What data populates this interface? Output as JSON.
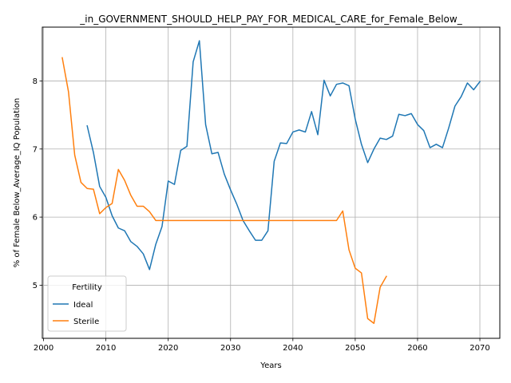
{
  "chart_data": {
    "type": "line",
    "title": "_in_GOVERNMENT_SHOULD_HELP_PAY_FOR_MEDICAL_CARE_for_Female_Below_",
    "xlabel": "Years",
    "ylabel": "% of Female Below_Average_IQ Population",
    "xlim": [
      1999.8,
      2073.2
    ],
    "ylim": [
      4.22,
      8.79
    ],
    "xticks": [
      2000,
      2010,
      2020,
      2030,
      2040,
      2050,
      2060,
      2070
    ],
    "yticks": [
      5,
      6,
      7,
      8
    ],
    "grid": true,
    "legend": {
      "title": "Fertility",
      "placement": "lower-left"
    },
    "series": [
      {
        "name": "Ideal",
        "color": "#1f77b4",
        "x": [
          2007,
          2008,
          2009,
          2010,
          2011,
          2012,
          2013,
          2014,
          2015,
          2016,
          2017,
          2018,
          2019,
          2020,
          2021,
          2022,
          2023,
          2024,
          2025,
          2026,
          2027,
          2028,
          2029,
          2030,
          2031,
          2032,
          2033,
          2034,
          2035,
          2036,
          2037,
          2038,
          2039,
          2040,
          2041,
          2042,
          2043,
          2044,
          2045,
          2046,
          2047,
          2048,
          2049,
          2050,
          2051,
          2052,
          2053,
          2054,
          2055,
          2056,
          2057,
          2058,
          2059,
          2060,
          2061,
          2062,
          2063,
          2064,
          2065,
          2066,
          2067,
          2068,
          2069,
          2070
        ],
        "y": [
          7.34,
          6.95,
          6.45,
          6.29,
          6.02,
          5.84,
          5.8,
          5.64,
          5.57,
          5.46,
          5.23,
          5.6,
          5.86,
          6.53,
          6.48,
          6.98,
          7.04,
          8.28,
          8.59,
          7.36,
          6.93,
          6.95,
          6.63,
          6.4,
          6.19,
          5.95,
          5.8,
          5.66,
          5.66,
          5.8,
          6.82,
          7.09,
          7.08,
          7.25,
          7.28,
          7.25,
          7.55,
          7.21,
          8.01,
          7.78,
          7.95,
          7.97,
          7.93,
          7.44,
          7.07,
          6.8,
          7.0,
          7.16,
          7.14,
          7.19,
          7.51,
          7.49,
          7.52,
          7.36,
          7.27,
          7.02,
          7.07,
          7.02,
          7.31,
          7.63,
          7.77,
          7.97,
          7.87,
          7.99
        ]
      },
      {
        "name": "Sterile",
        "color": "#ff7f0e",
        "x": [
          2003,
          2004,
          2005,
          2006,
          2007,
          2008,
          2009,
          2010,
          2011,
          2012,
          2013,
          2014,
          2015,
          2016,
          2017,
          2018,
          2019,
          2020,
          2021,
          2022,
          2023,
          2024,
          2025,
          2026,
          2027,
          2028,
          2029,
          2030,
          2031,
          2032,
          2033,
          2034,
          2035,
          2036,
          2037,
          2038,
          2039,
          2040,
          2041,
          2042,
          2043,
          2044,
          2045,
          2046,
          2047,
          2048,
          2049,
          2050,
          2051,
          2052,
          2053,
          2054,
          2055
        ],
        "y": [
          8.34,
          7.84,
          6.91,
          6.51,
          6.42,
          6.41,
          6.05,
          6.14,
          6.2,
          6.7,
          6.54,
          6.32,
          6.16,
          6.16,
          6.08,
          5.95,
          5.95,
          5.95,
          5.95,
          5.95,
          5.95,
          5.95,
          5.95,
          5.95,
          5.95,
          5.95,
          5.95,
          5.95,
          5.95,
          5.95,
          5.95,
          5.95,
          5.95,
          5.95,
          5.95,
          5.95,
          5.95,
          5.95,
          5.95,
          5.95,
          5.95,
          5.95,
          5.95,
          5.95,
          5.95,
          6.09,
          5.52,
          5.25,
          5.18,
          4.51,
          4.44,
          4.97,
          5.13
        ]
      }
    ]
  }
}
